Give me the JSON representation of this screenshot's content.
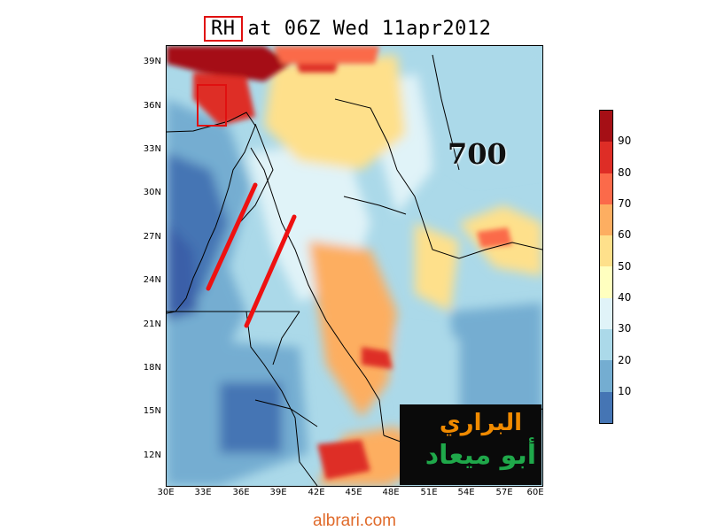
{
  "title": {
    "variable": "RH",
    "rest": "at 06Z Wed 11apr2012"
  },
  "level_label": "700",
  "map": {
    "lat_ticks": [
      "39N",
      "36N",
      "33N",
      "30N",
      "27N",
      "24N",
      "21N",
      "18N",
      "15N",
      "12N"
    ],
    "lon_ticks": [
      "30E",
      "33E",
      "36E",
      "39E",
      "42E",
      "45E",
      "48E",
      "51E",
      "54E",
      "57E",
      "60E"
    ],
    "annotations": [
      {
        "name": "red-line-north",
        "from": [
          "37.2E",
          "30.5N"
        ],
        "to": [
          "33.3E",
          "23.6N"
        ]
      },
      {
        "name": "red-line-south",
        "from": [
          "40.5E",
          "28.5N"
        ],
        "to": [
          "36.5E",
          "21.0N"
        ]
      }
    ]
  },
  "colorbar": {
    "labels": [
      "90",
      "80",
      "70",
      "60",
      "50",
      "40",
      "30",
      "20",
      "10"
    ],
    "colors": [
      "#a50f15",
      "#de2d26",
      "#fb6a4a",
      "#fdae61",
      "#fee08b",
      "#ffffbf",
      "#e0f3f8",
      "#abd9e9",
      "#74add1",
      "#4575b4"
    ]
  },
  "logo": {
    "line1": "البراري",
    "line2": "أبو ميعاد"
  },
  "footer": "albrari.com"
}
